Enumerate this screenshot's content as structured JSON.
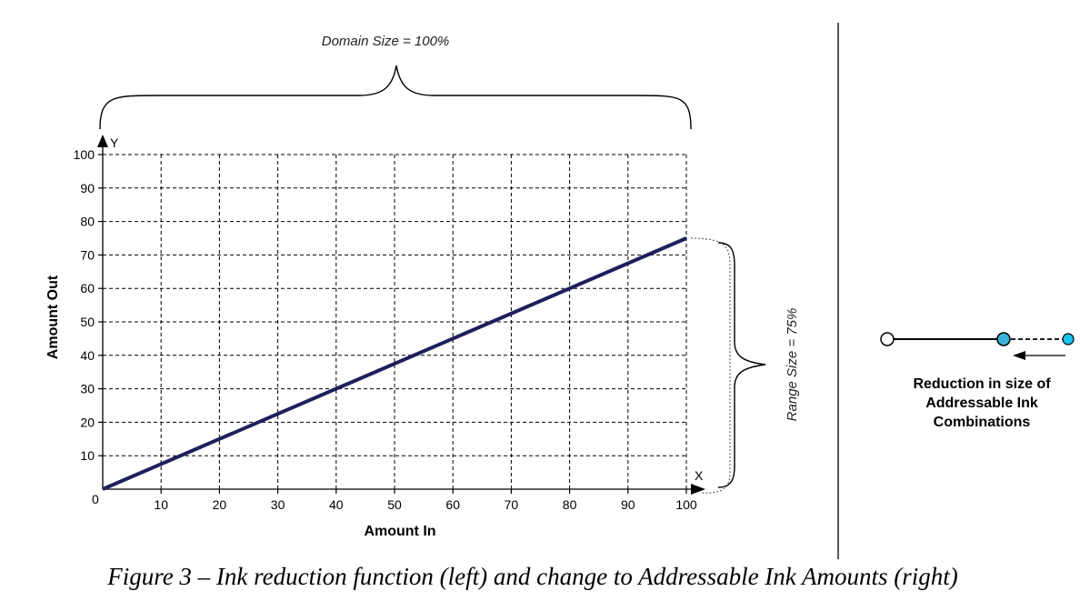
{
  "chart_data": {
    "type": "line",
    "title": "",
    "xlabel": "Amount In",
    "ylabel": "Amount Out",
    "xlim": [
      0,
      100
    ],
    "ylim": [
      0,
      100
    ],
    "x_ticks": [
      10,
      20,
      30,
      40,
      50,
      60,
      70,
      80,
      90,
      100
    ],
    "y_ticks": [
      10,
      20,
      30,
      40,
      50,
      60,
      70,
      80,
      90,
      100
    ],
    "origin_label": "0",
    "x_axis_letter": "X",
    "y_axis_letter": "Y",
    "grid": true,
    "series": [
      {
        "x": [
          0,
          100
        ],
        "y": [
          0,
          75
        ],
        "color": "#1f1f5c"
      }
    ],
    "annotations": {
      "domain": "Domain Size = 100%",
      "range": "Range Size = 75%"
    }
  },
  "inset": {
    "caption_lines": [
      "Reduction in size of",
      "Addressable Ink",
      "Combinations"
    ],
    "point_colors": {
      "start": "#ffffff",
      "current": "#3ab5d9",
      "original": "#1ac3ea"
    },
    "arrow_icon": "left-arrow-icon"
  },
  "caption": "Figure 3 – Ink reduction function (left) and change to Addressable Ink Amounts (right)"
}
